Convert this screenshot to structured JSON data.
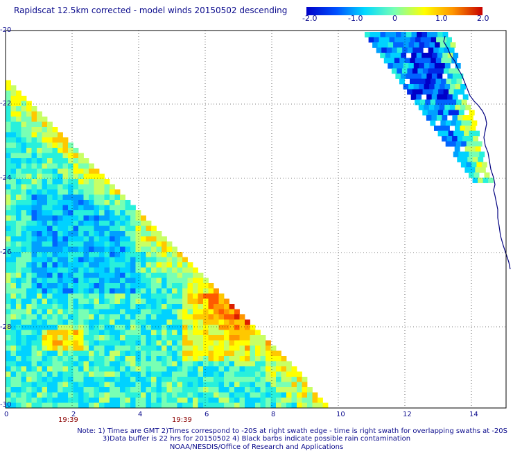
{
  "title": "Rapidscat 12.5km corrected - model winds 20150502 descending",
  "colorbar": {
    "ticks": [
      "-2.0",
      "-1.0",
      "0",
      "1.0",
      "2.0"
    ],
    "colors": [
      "#0000c8",
      "#0050ff",
      "#00d8ff",
      "#78ffb4",
      "#ffff00",
      "#ff9600",
      "#c80000"
    ]
  },
  "map": {
    "lat_ticks": [
      "-20",
      "-22",
      "-24",
      "-26",
      "-28",
      "-30"
    ],
    "lon_ticks": [
      "0",
      "2",
      "4",
      "6",
      "8",
      "10",
      "12",
      "14"
    ],
    "time_labels": [
      "19:39",
      "19:39"
    ],
    "grid": true,
    "coastline_color": "#00007f",
    "data_description_none": ""
  },
  "notes": [
    "Note: 1) Times are GMT 2)Times correspond to -20S at right swath edge - time is right swath for overlapping swaths at -20S",
    "3)Data buffer is 22 hrs for 20150502 4) Black barbs indicate possible rain contamination"
  ],
  "footer": "NOAA/NESDIS/Office of Research and Applications"
}
